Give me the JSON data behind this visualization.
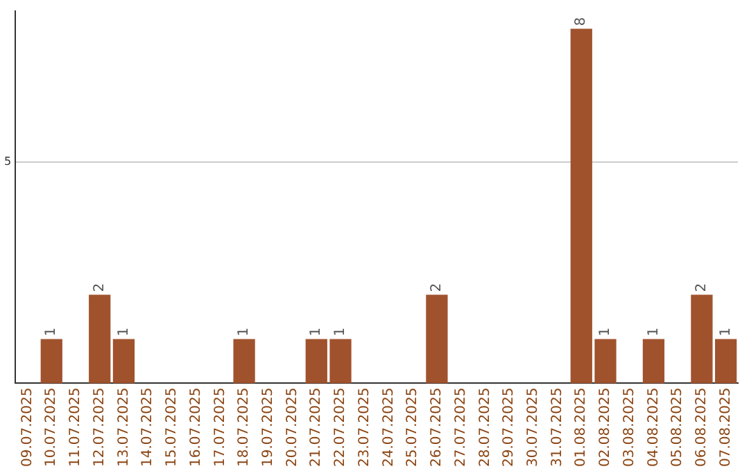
{
  "chart_data": {
    "type": "bar",
    "categories": [
      "09.07.2025",
      "10.07.2025",
      "11.07.2025",
      "12.07.2025",
      "13.07.2025",
      "14.07.2025",
      "15.07.2025",
      "16.07.2025",
      "17.07.2025",
      "18.07.2025",
      "19.07.2025",
      "20.07.2025",
      "21.07.2025",
      "22.07.2025",
      "23.07.2025",
      "24.07.2025",
      "25.07.2025",
      "26.07.2025",
      "27.07.2025",
      "28.07.2025",
      "29.07.2025",
      "30.07.2025",
      "31.07.2025",
      "01.08.2025",
      "02.08.2025",
      "03.08.2025",
      "04.08.2025",
      "05.08.2025",
      "06.08.2025",
      "07.08.2025"
    ],
    "values": [
      0,
      1,
      0,
      2,
      1,
      0,
      0,
      0,
      0,
      1,
      0,
      0,
      1,
      1,
      0,
      0,
      0,
      2,
      0,
      0,
      0,
      0,
      0,
      8,
      1,
      0,
      1,
      0,
      2,
      1
    ],
    "value_labels": [
      null,
      "1",
      null,
      "2",
      "1",
      null,
      null,
      null,
      null,
      "1",
      null,
      null,
      "1",
      "1",
      null,
      null,
      null,
      "2",
      null,
      null,
      null,
      null,
      null,
      "8",
      "1",
      null,
      "1",
      null,
      "2",
      "1"
    ],
    "color": "#a0522d",
    "ylim": [
      0,
      8.4
    ],
    "yticks": [
      5
    ],
    "grid": "y"
  }
}
